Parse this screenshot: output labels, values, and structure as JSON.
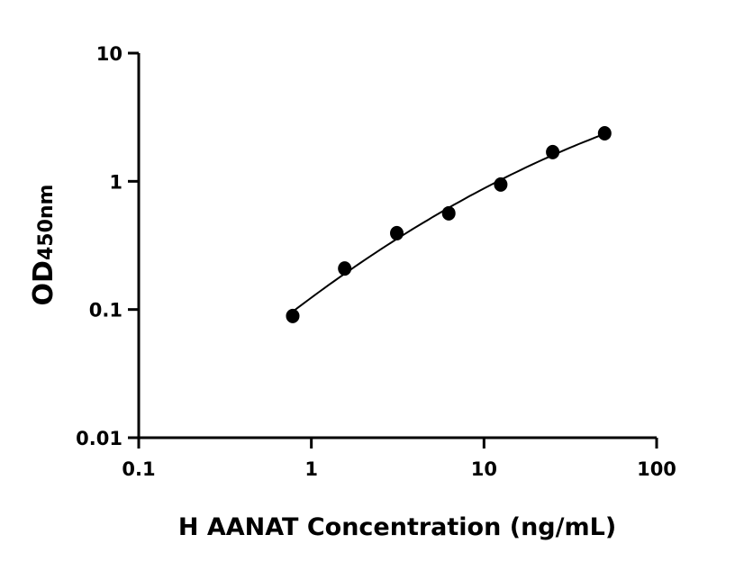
{
  "chart_data": {
    "type": "scatter",
    "xlabel": "H AANAT Concentration (ng/mL)",
    "ylabel_main": "OD",
    "ylabel_sub": "450nm",
    "x_scale": "log",
    "y_scale": "log",
    "xlim": [
      0.1,
      100
    ],
    "ylim": [
      0.01,
      10
    ],
    "x_ticks": [
      0.1,
      1,
      10,
      100
    ],
    "x_tick_labels": [
      "0.1",
      "1",
      "10",
      "100"
    ],
    "y_ticks": [
      0.01,
      0.1,
      1,
      10
    ],
    "y_tick_labels": [
      "0.01",
      "0.1",
      "1",
      "10"
    ],
    "grid": false,
    "fit_curve": true,
    "series": [
      {
        "x": [
          0.78,
          1.56,
          3.125,
          6.25,
          12.5,
          25,
          50
        ],
        "y": [
          0.089,
          0.209,
          0.394,
          0.563,
          0.944,
          1.69,
          2.37
        ]
      }
    ],
    "colors": {
      "marker": "#000000",
      "line": "#000000"
    }
  }
}
